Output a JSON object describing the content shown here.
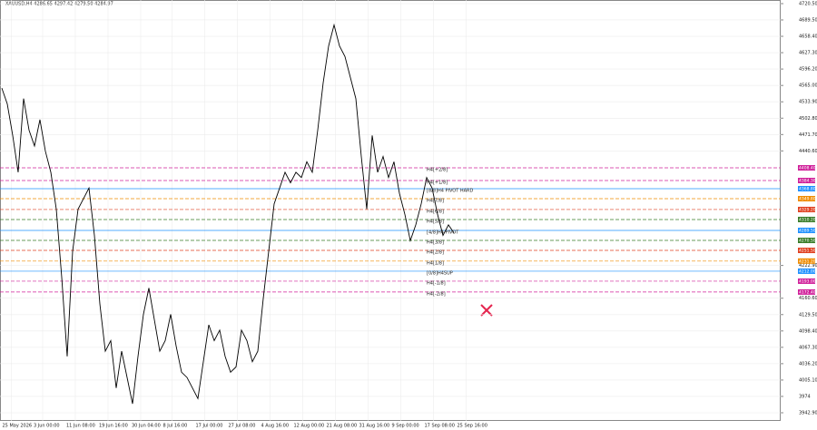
{
  "chart_data": {
    "type": "line",
    "title": "XAUUSD,H4 4286.65 4297.42 4279.50 4284.97",
    "x": [
      0,
      4,
      8,
      12,
      16,
      20,
      24,
      28,
      32,
      36,
      40,
      44,
      48,
      52,
      56,
      60,
      64,
      68,
      72,
      76,
      80,
      84,
      88,
      92,
      96,
      100,
      104,
      108,
      112,
      116,
      120,
      124,
      128,
      132,
      136,
      140,
      144,
      148,
      152,
      156,
      160,
      164,
      168,
      172,
      176,
      180,
      184,
      188,
      192,
      196,
      200,
      204,
      208,
      212,
      216,
      220,
      224,
      228,
      232,
      236,
      240,
      244,
      248,
      252,
      256,
      260,
      264,
      268,
      272,
      276,
      280,
      284,
      288,
      292,
      296,
      300,
      304,
      308,
      312,
      316,
      320,
      324,
      328,
      332
    ],
    "series": [
      {
        "name": "XAUUSD,H4",
        "color": "#000000",
        "values": [
          4560,
          4530,
          4470,
          4400,
          4540,
          4480,
          4450,
          4500,
          4440,
          4400,
          4330,
          4200,
          4050,
          4250,
          4330,
          4350,
          4370,
          4280,
          4150,
          4060,
          4080,
          3990,
          4060,
          4010,
          3960,
          4050,
          4130,
          4180,
          4120,
          4060,
          4080,
          4130,
          4070,
          4020,
          4010,
          3990,
          3970,
          4040,
          4110,
          4080,
          4100,
          4050,
          4020,
          4030,
          4100,
          4080,
          4040,
          4060,
          4160,
          4250,
          4340,
          4370,
          4400,
          4380,
          4400,
          4390,
          4420,
          4400,
          4480,
          4570,
          4640,
          4680,
          4640,
          4620,
          4580,
          4540,
          4430,
          4330,
          4470,
          4400,
          4430,
          4390,
          4420,
          4360,
          4320,
          4270,
          4300,
          4340,
          4390,
          4370,
          4320,
          4280,
          4300,
          4285
        ]
      }
    ],
    "xlim": [
      0,
      573
    ],
    "xticks": [
      {
        "value": 7,
        "label": "25 May 2026"
      },
      {
        "value": 30,
        "label": "3 Jun 00:00"
      },
      {
        "value": 54,
        "label": "11 Jun 08:00"
      },
      {
        "value": 78,
        "label": "19 Jun 16:00"
      },
      {
        "value": 102,
        "label": "30 Jun 04:00"
      },
      {
        "value": 125,
        "label": "8 Jul 16:00"
      },
      {
        "value": 149,
        "label": "17 Jul 00:00"
      },
      {
        "value": 173,
        "label": "27 Jul 08:00"
      },
      {
        "value": 197,
        "label": "4 Aug 16:00"
      },
      {
        "value": 221,
        "label": "12 Aug 00:00"
      },
      {
        "value": 245,
        "label": "21 Aug 08:00"
      },
      {
        "value": 269,
        "label": "31 Aug 16:00"
      },
      {
        "value": 293,
        "label": "9 Sep 00:00"
      },
      {
        "value": 317,
        "label": "17 Sep 08:00"
      },
      {
        "value": 341,
        "label": "25 Sep 16:00"
      }
    ],
    "ylim": [
      3942.9,
      4720.5
    ],
    "yticks": [
      {
        "value": 3942.9,
        "label": "3942.90"
      },
      3974,
      {
        "value": 4005.1,
        "label": "4005.10"
      },
      {
        "value": 4036.2,
        "label": "4036.20"
      },
      {
        "value": 4067.3,
        "label": "4067.30"
      },
      {
        "value": 4098.4,
        "label": "4098.40"
      },
      {
        "value": 4129.5,
        "label": "4129.50"
      },
      {
        "value": 4160.6,
        "label": "4160.60"
      },
      {
        "value": 4222.9,
        "label": "4222.90"
      },
      {
        "value": 4440.6,
        "label": "4440.60"
      },
      {
        "value": 4471.7,
        "label": "4471.70"
      },
      {
        "value": 4502.8,
        "label": "4502.80"
      },
      {
        "value": 4533.9,
        "label": "4533.90"
      },
      {
        "value": 4565,
        "label": "4565.00"
      },
      {
        "value": 4596.2,
        "label": "4596.20"
      },
      {
        "value": 4627.3,
        "label": "4627.30"
      },
      {
        "value": 4658.4,
        "label": "4658.40"
      },
      {
        "value": 4689.5,
        "label": "4689.50"
      },
      {
        "value": 4720.5,
        "label": "4720.50"
      }
    ],
    "grid": true,
    "levels": [
      {
        "label": "H4[+2/8]",
        "value": 4408.4,
        "value_label": "4408.40",
        "color": "#d0209a"
      },
      {
        "label": "H4[+1/8]",
        "value": 4384.3,
        "value_label": "4384.30",
        "color": "#d0209a"
      },
      {
        "label": "[8/8]H4 PIVOT HARD",
        "value": 4368.8,
        "value_label": "4368.80",
        "color": "#1e90ff"
      },
      {
        "label": "H4[7/8]",
        "value": 4349.8,
        "value_label": "4349.80",
        "color": "#f08c00"
      },
      {
        "label": "H4[6/8]",
        "value": 4329.2,
        "value_label": "4329.20",
        "color": "#e04020"
      },
      {
        "label": "H4[5/8]",
        "value": 4310.2,
        "value_label": "4310.20",
        "color": "#3a7d2a"
      },
      {
        "label": "[4/8]H4 PIVOT",
        "value": 4289.5,
        "value_label": "4289.50",
        "color": "#1e90ff"
      },
      {
        "label": "H4[3/8]",
        "value": 4270.5,
        "value_label": "4270.50",
        "color": "#3a7d2a"
      },
      {
        "label": "H4[2/8]",
        "value": 4251.5,
        "value_label": "4251.50",
        "color": "#e04020"
      },
      {
        "label": "H4[1/8]",
        "value": 4231.2,
        "value_label": "4231.20",
        "color": "#f08c00"
      },
      {
        "label": "[0/8]H4SUP",
        "value": 4212,
        "value_label": "4212.00",
        "color": "#1e90ff"
      },
      {
        "label": "H4[-1/8]",
        "value": 4193,
        "value_label": "4193.00",
        "color": "#d0209a"
      },
      {
        "label": "H4[-2/8]",
        "value": 4172.4,
        "value_label": "4172.40",
        "color": "#d0209a"
      }
    ]
  }
}
